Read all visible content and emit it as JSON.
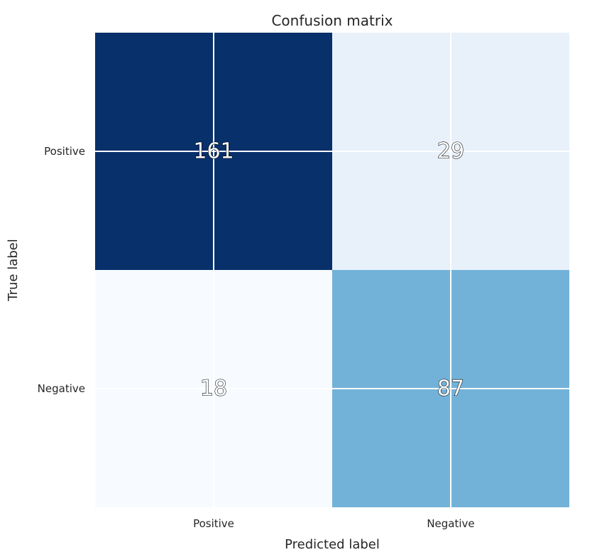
{
  "chart_data": {
    "type": "heatmap",
    "title": "Confusion matrix",
    "xlabel": "Predicted label",
    "ylabel": "True label",
    "x_categories": [
      "Positive",
      "Negative"
    ],
    "y_categories": [
      "Positive",
      "Negative"
    ],
    "values": [
      [
        161,
        29
      ],
      [
        18,
        87
      ]
    ],
    "colormap": "Blues",
    "color_range": [
      18,
      161
    ],
    "grid": true,
    "colors": {
      "max": "#08306b",
      "mid": "#6baed6",
      "min": "#f7fbff",
      "text_fill": "#ffffff",
      "text_outline": "#000000",
      "axis_text": "#262626"
    }
  }
}
